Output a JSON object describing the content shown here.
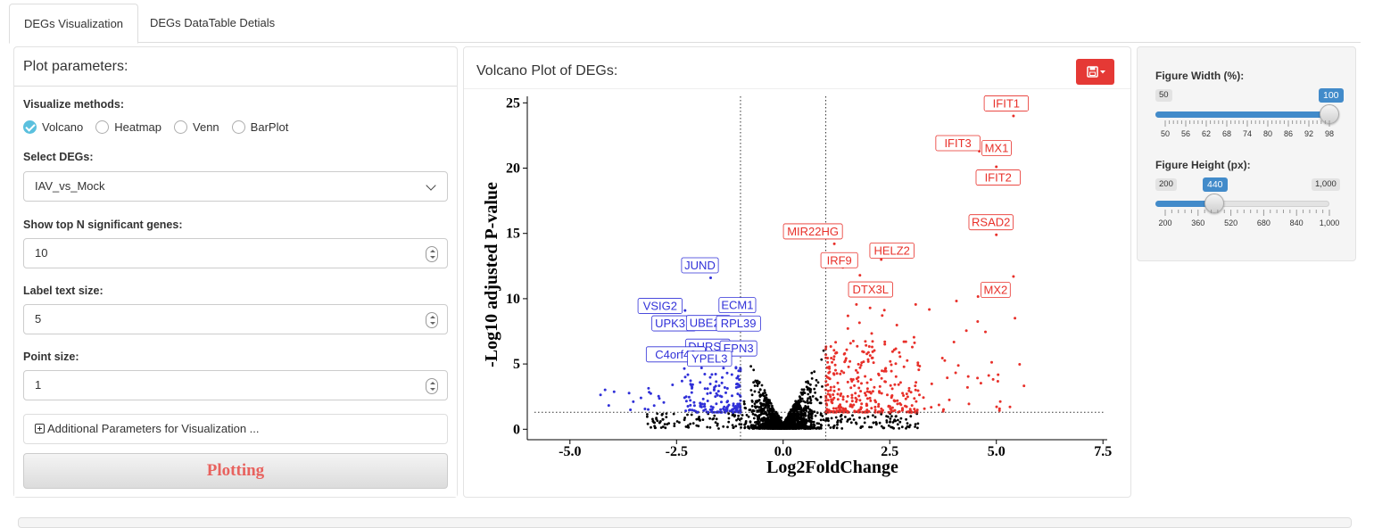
{
  "tabs": [
    {
      "label": "DEGs Visualization",
      "active": true
    },
    {
      "label": "DEGs DataTable Detials",
      "active": false
    }
  ],
  "left_panel": {
    "title": "Plot parameters:",
    "visualize_label": "Visualize methods:",
    "methods": [
      {
        "label": "Volcano",
        "checked": true
      },
      {
        "label": "Heatmap",
        "checked": false
      },
      {
        "label": "Venn",
        "checked": false
      },
      {
        "label": "BarPlot",
        "checked": false
      }
    ],
    "select_degs_label": "Select DEGs:",
    "select_degs_value": "IAV_vs_Mock",
    "top_n_label": "Show top N significant genes:",
    "top_n_value": "10",
    "label_size_label": "Label text size:",
    "label_size_value": "5",
    "point_size_label": "Point size:",
    "point_size_value": "1",
    "additional_label": "Additional Parameters for Visualization ...",
    "plot_button": "Plotting"
  },
  "plot_panel": {
    "title": "Volcano Plot of DEGs:",
    "save_icon": "floppy-disk-icon"
  },
  "chart_data": {
    "type": "scatter",
    "xlabel": "Log2FoldChange",
    "ylabel": "-Log10 adjusted P-value",
    "xlim": [
      -6.0,
      7.6
    ],
    "ylim": [
      -0.8,
      25.5
    ],
    "x_ticks": [
      -5.0,
      -2.5,
      0.0,
      2.5,
      5.0,
      7.5
    ],
    "x_tick_labels": [
      "-5.0",
      "-2.5",
      "0.0",
      "2.5",
      "5.0",
      "7.5"
    ],
    "y_ticks": [
      0,
      5,
      10,
      15,
      20,
      25
    ],
    "y_tick_labels": [
      "0",
      "5",
      "10",
      "15",
      "20",
      "25"
    ],
    "fc_thresholds": [
      -1,
      1
    ],
    "p_threshold": 1.3,
    "colors": {
      "up": "#e8302a",
      "down": "#3030d8",
      "ns": "#000000"
    },
    "labeled_genes": [
      {
        "gene": "IFIT1",
        "x": 5.4,
        "y": 24.0,
        "dir": "up"
      },
      {
        "gene": "IFIT3",
        "x": 4.6,
        "y": 21.3,
        "dir": "up"
      },
      {
        "gene": "MX1",
        "x": 4.9,
        "y": 21.4,
        "dir": "up"
      },
      {
        "gene": "IFIT2",
        "x": 5.0,
        "y": 20.1,
        "dir": "up"
      },
      {
        "gene": "MIR22HG",
        "x": 1.2,
        "y": 14.2,
        "dir": "up"
      },
      {
        "gene": "IRF9",
        "x": 1.4,
        "y": 12.4,
        "dir": "up"
      },
      {
        "gene": "HELZ2",
        "x": 2.3,
        "y": 13.0,
        "dir": "up"
      },
      {
        "gene": "RSAD2",
        "x": 5.0,
        "y": 14.9,
        "dir": "up"
      },
      {
        "gene": "DTX3L",
        "x": 1.8,
        "y": 11.8,
        "dir": "up"
      },
      {
        "gene": "MX2",
        "x": 5.4,
        "y": 11.7,
        "dir": "up"
      },
      {
        "gene": "JUND",
        "x": -1.7,
        "y": 11.6,
        "dir": "down"
      },
      {
        "gene": "VSIG2",
        "x": -2.3,
        "y": 9.1,
        "dir": "down"
      },
      {
        "gene": "ECM1",
        "x": -1.2,
        "y": 9.3,
        "dir": "down"
      },
      {
        "gene": "UPK3B",
        "x": -2.1,
        "y": 7.7,
        "dir": "down"
      },
      {
        "gene": "UBE2S",
        "x": -1.5,
        "y": 8.0,
        "dir": "down"
      },
      {
        "gene": "RPL39",
        "x": -1.3,
        "y": 8.1,
        "dir": "down"
      },
      {
        "gene": "DHRS9",
        "x": -1.6,
        "y": 6.6,
        "dir": "down"
      },
      {
        "gene": "EPN3",
        "x": -1.3,
        "y": 6.6,
        "dir": "down"
      },
      {
        "gene": "C4orf48",
        "x": -2.1,
        "y": 5.6,
        "dir": "down"
      },
      {
        "gene": "YPEL3",
        "x": -1.6,
        "y": 5.4,
        "dir": "down"
      }
    ]
  },
  "right_panel": {
    "width_label": "Figure Width (%):",
    "width_min": "50",
    "width_max": "100",
    "width_value": "100",
    "width_range": [
      50,
      100
    ],
    "width_current": 100,
    "width_tick_labels": [
      "50",
      "56",
      "62",
      "68",
      "74",
      "80",
      "86",
      "92",
      "98"
    ],
    "height_label": "Figure Height (px):",
    "height_min": "200",
    "height_max": "1,000",
    "height_value": "440",
    "height_range": [
      200,
      1000
    ],
    "height_current": 440,
    "height_tick_labels": [
      "200",
      "360",
      "520",
      "680",
      "840",
      "1,000"
    ]
  }
}
